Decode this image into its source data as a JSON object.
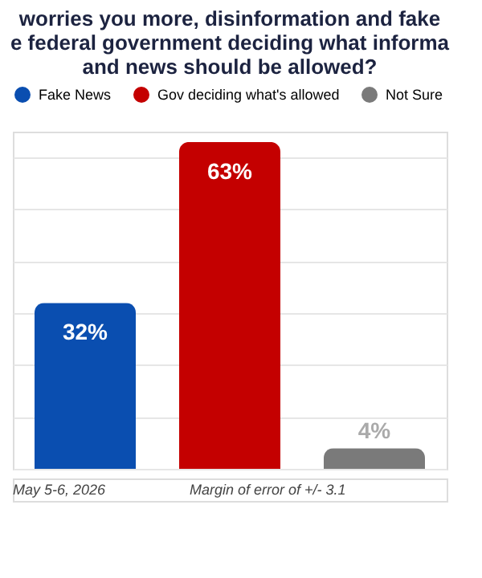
{
  "chart_data": {
    "type": "bar",
    "title": "worries you more, disinformation and fake e federal government deciding what informa and news should be allowed?",
    "categories": [
      null
    ],
    "series": [
      {
        "name": "Fake News",
        "color": "#0a4eb0",
        "values": [
          32
        ],
        "value_labels": [
          "32%"
        ]
      },
      {
        "name": "Gov deciding what's allowed",
        "color": "#c40000",
        "values": [
          63
        ],
        "value_labels": [
          "63%"
        ]
      },
      {
        "name": "Not Sure",
        "color": "#7a7a7a",
        "values": [
          4
        ],
        "value_labels": [
          "4%"
        ]
      }
    ],
    "legend": "top",
    "tick_labels": false,
    "grid": "y",
    "annotations": [
      "May 5-6, 2026",
      "Margin of error of +/- 3.1"
    ]
  }
}
